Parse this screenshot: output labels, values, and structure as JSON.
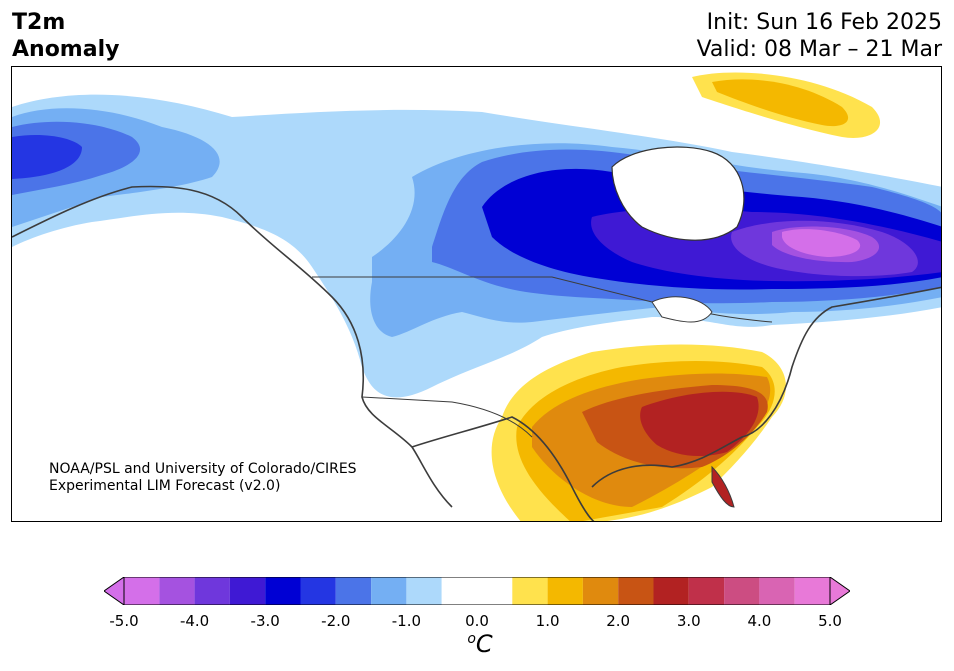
{
  "header": {
    "title_line1": "T2m",
    "title_line2": "Anomaly",
    "init": "Init: Sun 16 Feb 2025",
    "valid": "Valid: 08 Mar – 21 Mar"
  },
  "credit": {
    "line1": "NOAA/PSL and University of Colorado/CIRES",
    "line2": "Experimental LIM Forecast (v2.0)"
  },
  "colorbar": {
    "unit_base": "C",
    "unit_super": "o",
    "ticks": [
      "-5.0",
      "-4.0",
      "-3.0",
      "-2.0",
      "-1.0",
      "0.0",
      "1.0",
      "2.0",
      "3.0",
      "4.0",
      "5.0"
    ],
    "levels": [
      -5.0,
      -4.5,
      -4.0,
      -3.5,
      -3.0,
      -2.5,
      -2.0,
      -1.5,
      -1.0,
      -0.5,
      0.5,
      1.0,
      1.5,
      2.0,
      2.5,
      3.0,
      3.5,
      4.0,
      4.5,
      5.0
    ],
    "colors": [
      "#d46fe9",
      "#a552e0",
      "#6f37dc",
      "#3f19d4",
      "#0000d4",
      "#2436e3",
      "#4b74e8",
      "#74aff3",
      "#add9fb",
      "#ffffff",
      "#ffe24d",
      "#f4b800",
      "#e08a0e",
      "#c85414",
      "#b22222",
      "#c0304a",
      "#cc4d82",
      "#d964b3",
      "#e879d8"
    ],
    "under_color": "#d46fe9",
    "over_color": "#e879d8"
  },
  "map": {
    "region": "North America",
    "cold_anomaly_color": "#3f19d4",
    "warm_anomaly_color": "#b22222"
  }
}
